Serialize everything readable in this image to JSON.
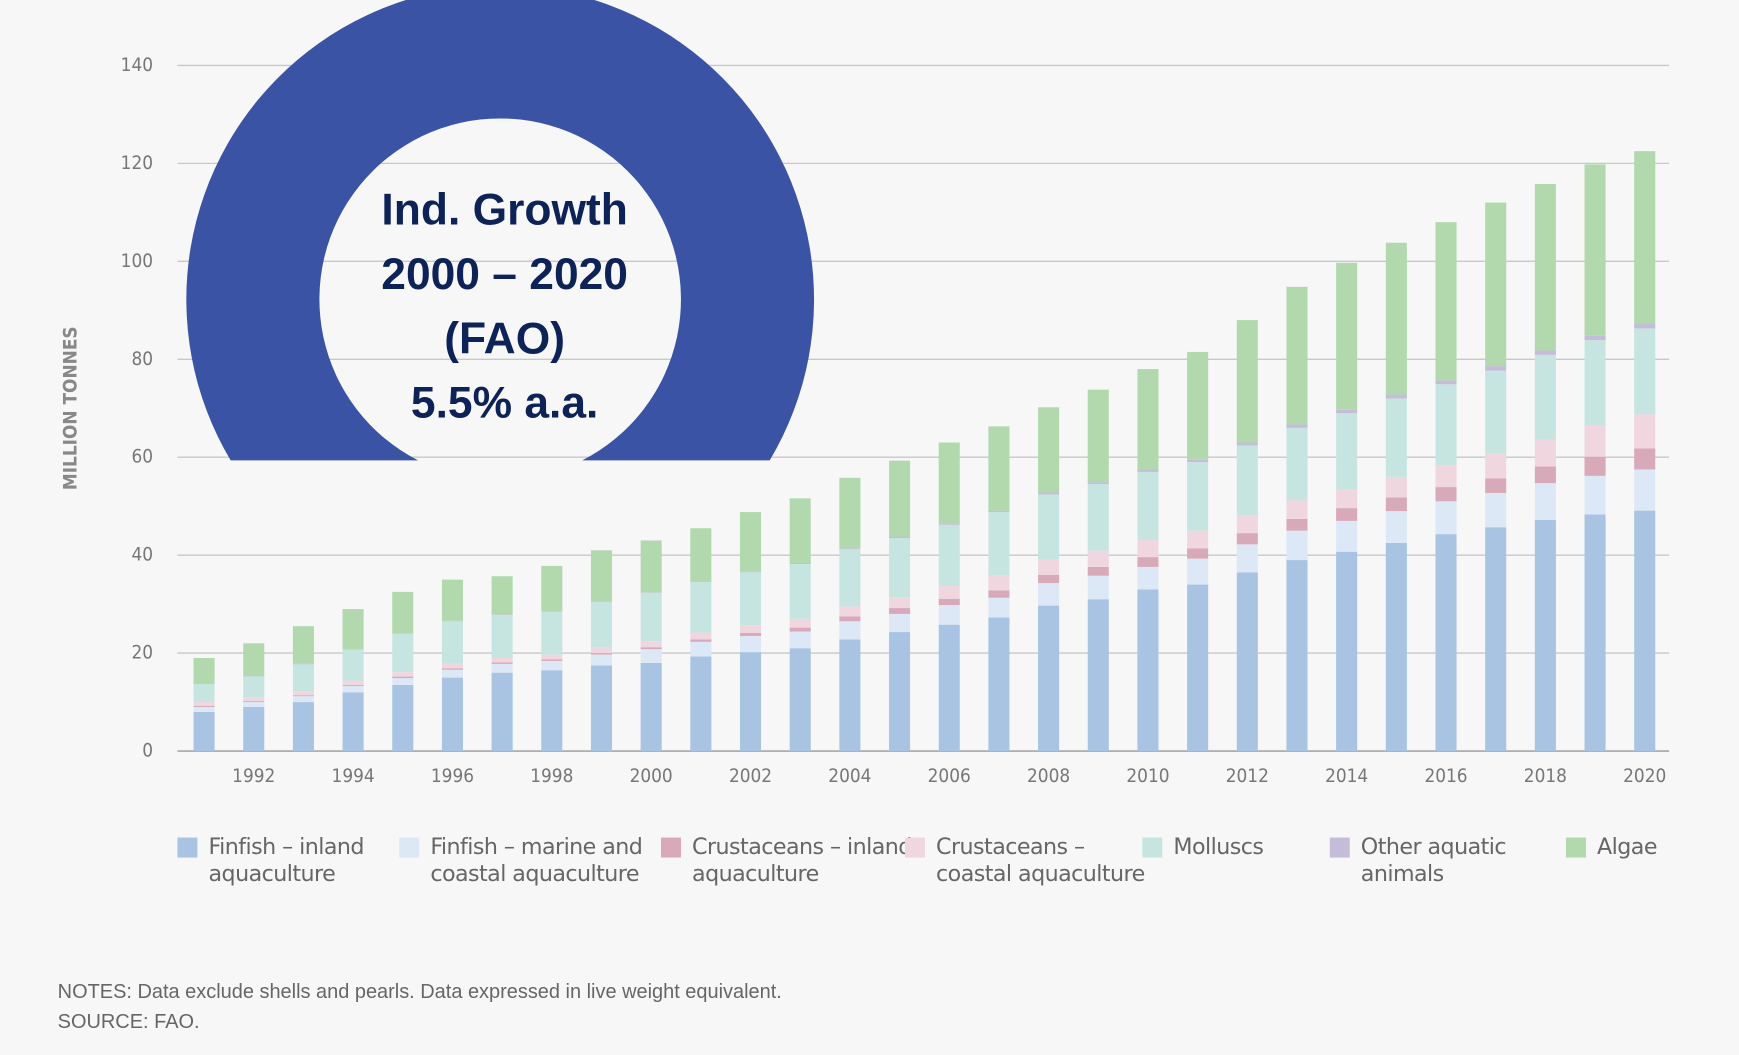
{
  "chart_data": {
    "type": "stacked_bar",
    "ylabel": "MILLION TONNES",
    "categories": [
      null,
      "1992",
      null,
      "1994",
      null,
      "1996",
      null,
      "1998",
      null,
      "2000",
      null,
      "2002",
      null,
      "2004",
      null,
      "2006",
      null,
      "2008",
      null,
      "2010",
      null,
      "2012",
      null,
      "2014",
      null,
      "2016",
      null,
      "2018",
      null,
      "2020"
    ],
    "ylim": [
      0,
      140
    ],
    "yticks": [
      0,
      20,
      40,
      60,
      80,
      100,
      120,
      140
    ],
    "grid": true,
    "series": [
      {
        "name": "Finfish – inland aquaculture",
        "color": "#a9c4e3",
        "values": [
          8,
          9,
          10,
          12,
          13.5,
          15,
          16,
          16.5,
          17.5,
          18,
          19.3,
          20.2,
          21,
          22.8,
          24.3,
          25.8,
          27.3,
          29.7,
          31,
          33,
          34,
          36.5,
          39,
          40.7,
          42.5,
          44.3,
          45.7,
          47.2,
          48.3,
          49.1
        ]
      },
      {
        "name": "Finfish – marine and coastal aquaculture",
        "color": "#dde8f7",
        "values": [
          1,
          1,
          1.2,
          1.3,
          1.4,
          1.6,
          1.8,
          1.9,
          2.2,
          2.8,
          3,
          3.3,
          3.4,
          3.7,
          3.7,
          4,
          4,
          4.6,
          4.8,
          4.6,
          5.3,
          5.7,
          6,
          6.3,
          6.5,
          6.7,
          7,
          7.5,
          7.9,
          8.4
        ]
      },
      {
        "name": "Crustaceans – inland aquaculture",
        "color": "#d8a9b8",
        "values": [
          0.2,
          0.2,
          0.2,
          0.2,
          0.3,
          0.3,
          0.3,
          0.3,
          0.3,
          0.4,
          0.5,
          0.6,
          0.8,
          1,
          1.2,
          1.3,
          1.5,
          1.7,
          1.8,
          2,
          2.1,
          2.3,
          2.4,
          2.6,
          2.8,
          2.9,
          3,
          3.4,
          3.9,
          4.3
        ]
      },
      {
        "name": "Crustaceans – coastal aquaculture",
        "color": "#f0d6de",
        "values": [
          0.8,
          0.8,
          0.8,
          0.9,
          0.9,
          0.9,
          0.9,
          1,
          1.1,
          1.2,
          1.4,
          1.6,
          1.8,
          2,
          2.2,
          2.6,
          3,
          3.1,
          3.3,
          3.5,
          3.6,
          3.7,
          3.8,
          3.9,
          4.2,
          4.5,
          5,
          5.5,
          6.3,
          7
        ]
      },
      {
        "name": "Molluscs",
        "color": "#c7e5e0",
        "values": [
          3.7,
          4.2,
          5.5,
          6.3,
          7.9,
          8.7,
          8.8,
          8.8,
          9.3,
          9.9,
          10.3,
          10.8,
          11.2,
          11.7,
          12.1,
          12.5,
          13,
          13.3,
          13.6,
          13.9,
          14,
          14.2,
          14.8,
          15.5,
          16,
          16.5,
          17,
          17.3,
          17.5,
          17.5
        ]
      },
      {
        "name": "Other aquatic animals",
        "color": "#c4bcd9",
        "values": [
          0.1,
          0.1,
          0.1,
          0.1,
          0.1,
          0.1,
          0.1,
          0.1,
          0.1,
          0.1,
          0.1,
          0.2,
          0.2,
          0.2,
          0.3,
          0.3,
          0.3,
          0.4,
          0.4,
          0.5,
          0.5,
          0.6,
          0.7,
          0.7,
          0.8,
          0.8,
          0.9,
          0.9,
          0.9,
          1
        ]
      },
      {
        "name": "Algae",
        "color": "#b2d9ad",
        "values": [
          5.2,
          6.7,
          7.7,
          8.2,
          8.4,
          8.4,
          7.8,
          9.2,
          10.5,
          10.6,
          10.9,
          12.1,
          13.2,
          14.4,
          15.5,
          16.5,
          17.2,
          17.4,
          18.9,
          20.5,
          22,
          25,
          28.1,
          30,
          31,
          32.3,
          33.4,
          34,
          35,
          35.2
        ]
      }
    ],
    "annotations": [
      "Ind. Growth",
      "2000 – 2020",
      "(FAO)",
      "5.5% a.a."
    ],
    "notes": [
      "NOTES: Data exclude shells and pearls. Data expressed in live weight equivalent.",
      "SOURCE: FAO."
    ]
  }
}
